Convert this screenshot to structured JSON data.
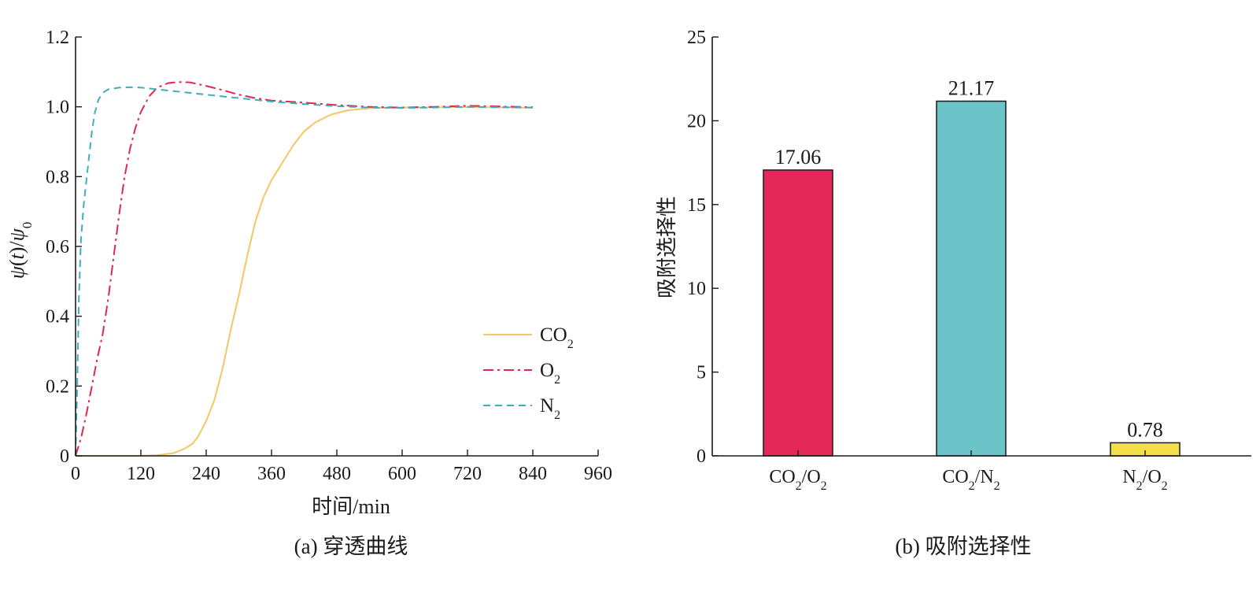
{
  "colors": {
    "co2": "#f2c766",
    "o2": "#e0284f",
    "n2": "#3bb0bd",
    "bar_co2_o2": "#e5285a",
    "bar_co2_n2": "#6cc3c8",
    "bar_n2_o2": "#f3df4a",
    "axis": "#1a1a1a"
  },
  "captions": {
    "a": "(a) 穿透曲线",
    "b": "(b) 吸附选择性"
  },
  "chart_data": [
    {
      "type": "line",
      "xlabel": "时间/min",
      "ylabel": "ψ(t)/ψ₀",
      "xlim": [
        0,
        960
      ],
      "ylim": [
        0,
        1.2
      ],
      "xticks": [
        0,
        120,
        240,
        360,
        480,
        600,
        720,
        840,
        960
      ],
      "yticks": [
        0,
        0.2,
        0.4,
        0.6,
        0.8,
        1.0,
        1.2
      ],
      "ytick_labels": [
        "0",
        "0.2",
        "0.4",
        "0.6",
        "0.8",
        "1.0",
        "1.2"
      ],
      "grid": false,
      "legend_position": "bottom-right",
      "series": [
        {
          "key": "co2",
          "name": "CO",
          "name_sub": "2",
          "style": "solid",
          "points": [
            [
              0,
              0
            ],
            [
              60,
              0
            ],
            [
              120,
              0
            ],
            [
              150,
              0.002
            ],
            [
              180,
              0.008
            ],
            [
              200,
              0.02
            ],
            [
              215,
              0.035
            ],
            [
              225,
              0.055
            ],
            [
              240,
              0.1
            ],
            [
              255,
              0.16
            ],
            [
              270,
              0.25
            ],
            [
              285,
              0.36
            ],
            [
              300,
              0.46
            ],
            [
              315,
              0.57
            ],
            [
              330,
              0.67
            ],
            [
              345,
              0.74
            ],
            [
              360,
              0.79
            ],
            [
              380,
              0.84
            ],
            [
              400,
              0.89
            ],
            [
              420,
              0.93
            ],
            [
              440,
              0.955
            ],
            [
              470,
              0.978
            ],
            [
              500,
              0.99
            ],
            [
              540,
              0.996
            ],
            [
              600,
              0.998
            ],
            [
              720,
              0.999
            ],
            [
              840,
              0.997
            ]
          ]
        },
        {
          "key": "o2",
          "name": "O",
          "name_sub": "2",
          "style": "dashdot",
          "points": [
            [
              0,
              0
            ],
            [
              10,
              0.05
            ],
            [
              20,
              0.12
            ],
            [
              30,
              0.2
            ],
            [
              40,
              0.28
            ],
            [
              50,
              0.35
            ],
            [
              60,
              0.45
            ],
            [
              70,
              0.57
            ],
            [
              80,
              0.69
            ],
            [
              90,
              0.8
            ],
            [
              100,
              0.88
            ],
            [
              110,
              0.94
            ],
            [
              120,
              0.985
            ],
            [
              135,
              1.03
            ],
            [
              150,
              1.055
            ],
            [
              170,
              1.068
            ],
            [
              190,
              1.071
            ],
            [
              210,
              1.07
            ],
            [
              240,
              1.06
            ],
            [
              270,
              1.048
            ],
            [
              300,
              1.035
            ],
            [
              330,
              1.025
            ],
            [
              360,
              1.018
            ],
            [
              420,
              1.012
            ],
            [
              480,
              1.005
            ],
            [
              540,
              1.0
            ],
            [
              600,
              0.998
            ],
            [
              660,
              1.0
            ],
            [
              720,
              1.003
            ],
            [
              780,
              1.001
            ],
            [
              840,
              0.999
            ]
          ]
        },
        {
          "key": "n2",
          "name": "N",
          "name_sub": "2",
          "style": "dashed",
          "points": [
            [
              0,
              0
            ],
            [
              3,
              0.2
            ],
            [
              6,
              0.45
            ],
            [
              10,
              0.62
            ],
            [
              15,
              0.72
            ],
            [
              20,
              0.79
            ],
            [
              25,
              0.86
            ],
            [
              30,
              0.93
            ],
            [
              35,
              0.98
            ],
            [
              42,
              1.02
            ],
            [
              50,
              1.04
            ],
            [
              60,
              1.05
            ],
            [
              80,
              1.055
            ],
            [
              100,
              1.056
            ],
            [
              120,
              1.055
            ],
            [
              150,
              1.05
            ],
            [
              180,
              1.045
            ],
            [
              240,
              1.035
            ],
            [
              300,
              1.025
            ],
            [
              360,
              1.015
            ],
            [
              420,
              1.008
            ],
            [
              480,
              1.002
            ],
            [
              540,
              0.998
            ],
            [
              600,
              0.997
            ],
            [
              660,
              0.998
            ],
            [
              720,
              1.0
            ],
            [
              780,
              0.999
            ],
            [
              840,
              0.998
            ]
          ]
        }
      ]
    },
    {
      "type": "bar",
      "ylabel": "吸附选择性",
      "ylim": [
        0,
        25
      ],
      "yticks": [
        0,
        5,
        10,
        15,
        20,
        25
      ],
      "grid": false,
      "categories": [
        {
          "a": "CO",
          "a_sub": "2",
          "b": "O",
          "b_sub": "2"
        },
        {
          "a": "CO",
          "a_sub": "2",
          "b": "N",
          "b_sub": "2"
        },
        {
          "a": "N",
          "a_sub": "2",
          "b": "O",
          "b_sub": "2"
        }
      ],
      "values": [
        17.06,
        21.17,
        0.78
      ],
      "value_labels": [
        "17.06",
        "21.17",
        "0.78"
      ]
    }
  ]
}
